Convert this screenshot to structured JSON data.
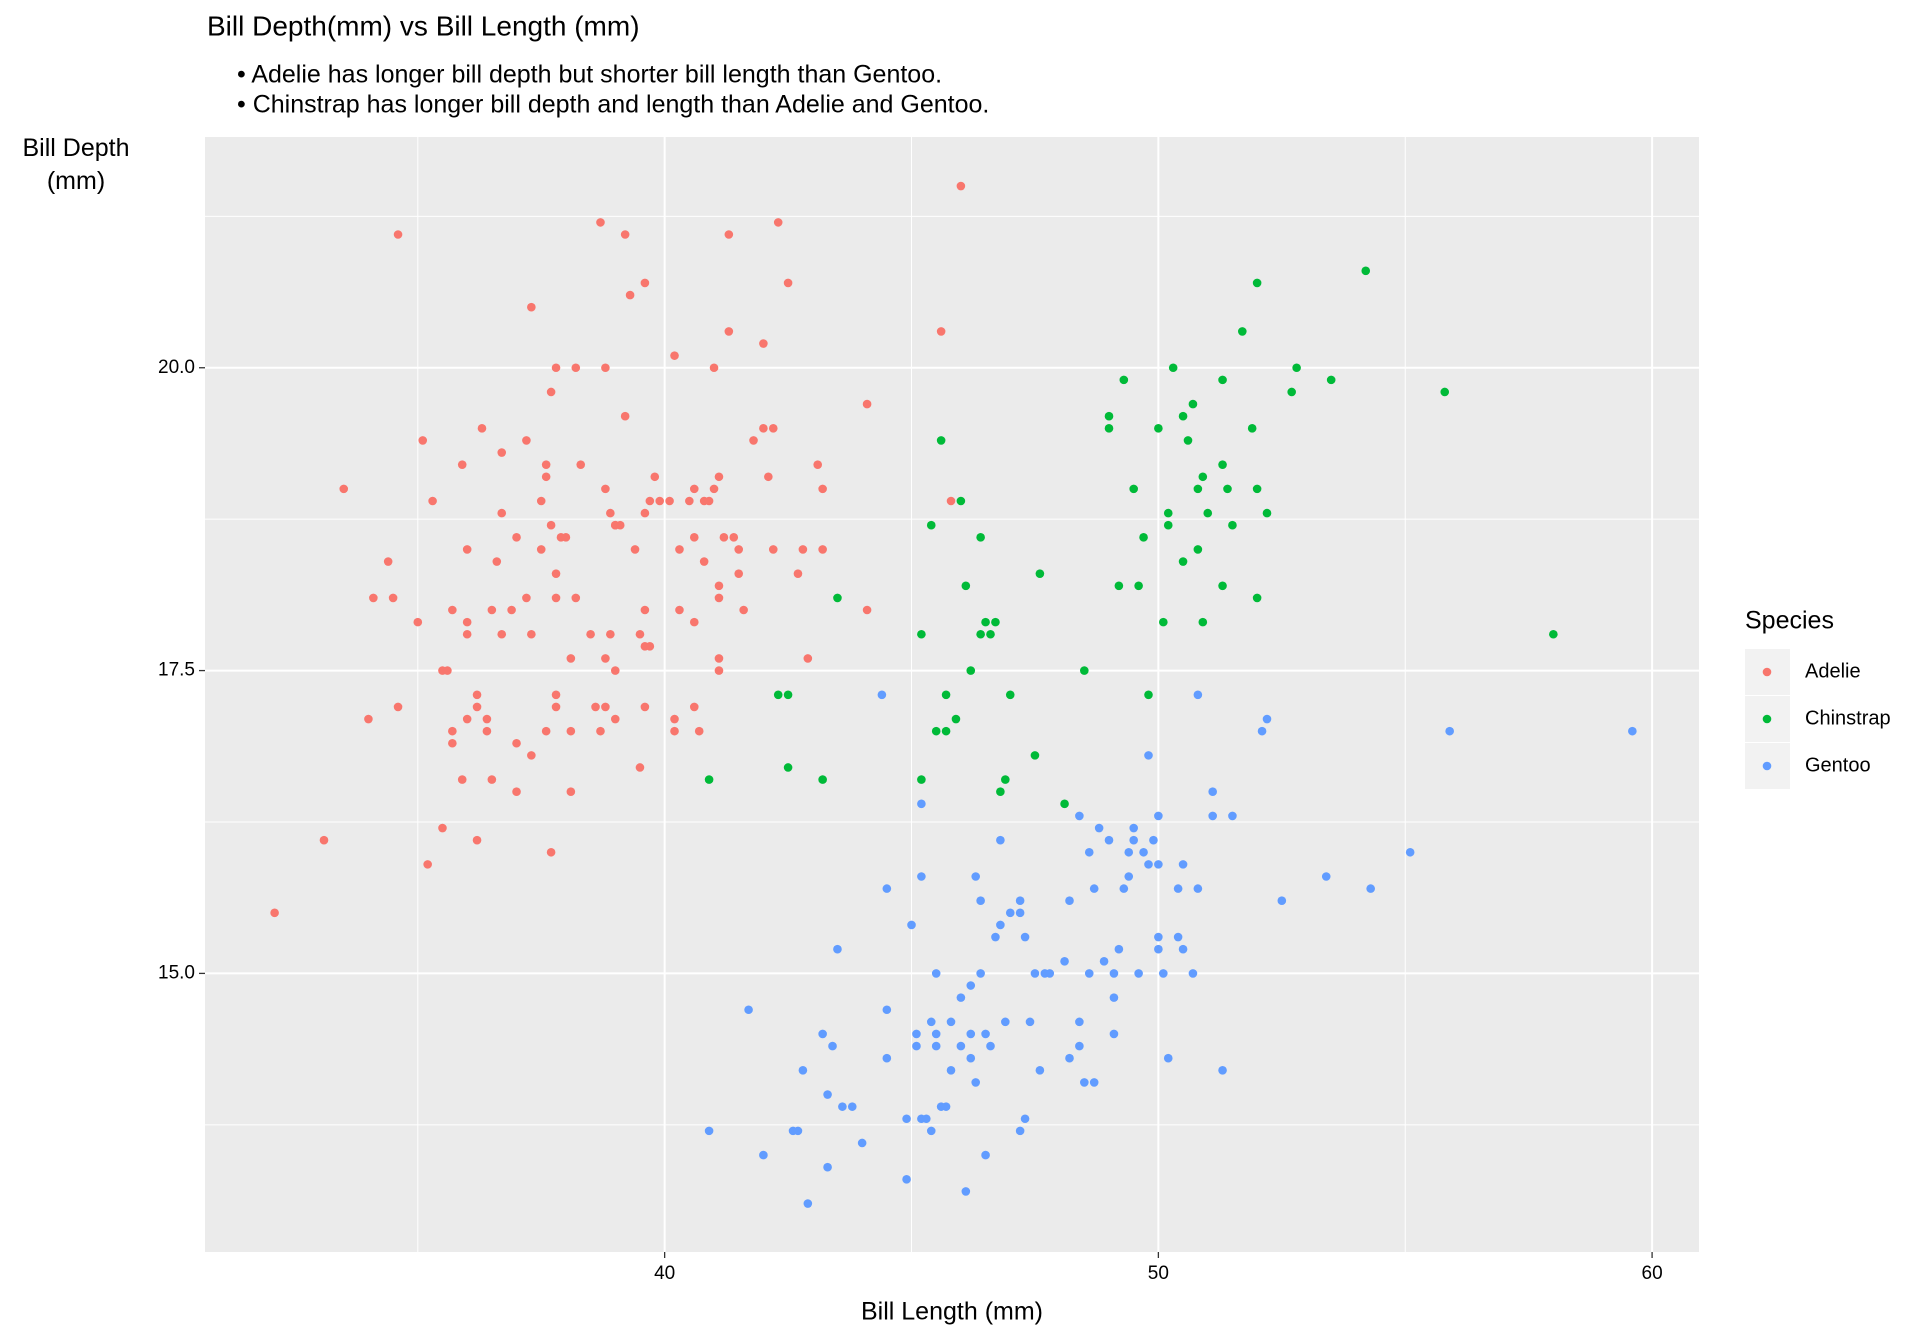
{
  "chart_data": {
    "type": "scatter",
    "title": "Bill Depth(mm) vs Bill Length (mm)",
    "subtitle": [
      "• Adelie has longer bill depth but shorter bill length than Gentoo.",
      "• Chinstrap has longer bill depth and length than Adelie and Gentoo."
    ],
    "xlabel": "Bill Length (mm)",
    "ylabel": "Bill Depth (mm)",
    "legend_title": "Species",
    "legend_position": "right",
    "grid": true,
    "xlim": [
      30.69,
      60.95
    ],
    "ylim": [
      12.7,
      21.905
    ],
    "xticks": [
      40,
      50,
      60
    ],
    "yticks": [
      {
        "value": 15,
        "label": "15.0"
      },
      17.5,
      {
        "value": 20,
        "label": "20.0"
      }
    ],
    "xminor": [
      35,
      45,
      55
    ],
    "yminor": [
      13.75,
      16.25,
      18.75,
      21.25
    ],
    "series": [
      {
        "name": "Adelie",
        "color": "#F8766D",
        "x": [
          32.1,
          33.1,
          33.5,
          34.0,
          34.1,
          34.4,
          34.5,
          34.6,
          34.6,
          35.0,
          35.1,
          35.2,
          35.3,
          35.5,
          35.5,
          35.6,
          35.7,
          35.7,
          35.7,
          35.9,
          35.9,
          36.0,
          36.0,
          36.0,
          36.0,
          36.2,
          36.2,
          36.2,
          36.3,
          36.4,
          36.4,
          36.5,
          36.5,
          36.6,
          36.7,
          36.7,
          36.7,
          36.9,
          37.0,
          37.0,
          37.0,
          37.2,
          37.2,
          37.3,
          37.3,
          37.3,
          37.5,
          37.5,
          37.6,
          37.6,
          37.6,
          37.7,
          37.7,
          37.7,
          37.8,
          37.8,
          37.8,
          37.8,
          37.8,
          37.9,
          38.0,
          38.1,
          38.1,
          38.1,
          38.2,
          38.2,
          38.3,
          38.5,
          38.6,
          38.7,
          38.7,
          38.8,
          38.8,
          38.8,
          38.8,
          38.9,
          38.9,
          39.0,
          39.0,
          39.0,
          39.1,
          39.0,
          39.2,
          39.2,
          39.3,
          39.4,
          39.5,
          39.5,
          39.6,
          39.6,
          39.6,
          39.6,
          39.6,
          39.7,
          39.7,
          39.8,
          39.9,
          40.1,
          40.2,
          40.2,
          40.2,
          40.3,
          40.3,
          40.5,
          40.6,
          40.6,
          40.6,
          40.6,
          40.7,
          40.8,
          40.8,
          40.9,
          41.0,
          41.0,
          41.1,
          41.1,
          41.1,
          41.1,
          41.1,
          41.2,
          41.3,
          41.3,
          41.4,
          41.5,
          41.5,
          41.6,
          41.8,
          42.0,
          42.0,
          42.1,
          42.2,
          42.2,
          42.3,
          42.5,
          42.7,
          42.8,
          42.9,
          43.1,
          43.2,
          43.2,
          44.1,
          44.1,
          45.6,
          45.8,
          46.0
        ],
        "values": [
          15.5,
          16.1,
          19.0,
          17.1,
          18.1,
          18.4,
          18.1,
          17.2,
          21.1,
          17.9,
          19.4,
          15.9,
          18.9,
          16.2,
          17.5,
          17.5,
          17.0,
          16.9,
          18.0,
          19.2,
          16.6,
          17.9,
          17.8,
          18.5,
          17.1,
          17.3,
          17.2,
          16.1,
          19.5,
          17.1,
          17.0,
          18.0,
          16.6,
          18.4,
          19.3,
          17.8,
          18.8,
          18.0,
          16.9,
          16.5,
          18.6,
          19.4,
          18.1,
          17.8,
          16.8,
          20.5,
          18.9,
          18.5,
          19.2,
          19.1,
          17.0,
          18.7,
          19.8,
          16.0,
          20.0,
          18.3,
          18.1,
          17.2,
          17.3,
          18.6,
          18.6,
          17.6,
          17.0,
          16.5,
          20.0,
          18.1,
          19.2,
          17.8,
          17.2,
          21.2,
          17.0,
          19.0,
          17.2,
          20.0,
          17.6,
          18.8,
          17.8,
          17.5,
          18.7,
          18.7,
          18.7,
          17.1,
          21.1,
          19.6,
          20.6,
          18.5,
          16.7,
          17.8,
          17.2,
          18.8,
          20.7,
          18.0,
          17.7,
          18.9,
          17.7,
          19.1,
          18.9,
          18.9,
          20.1,
          17.1,
          17.0,
          18.0,
          18.5,
          18.9,
          19.0,
          18.6,
          17.2,
          17.9,
          17.0,
          18.4,
          18.9,
          18.9,
          19.0,
          20.0,
          19.1,
          18.2,
          18.1,
          17.6,
          17.5,
          18.6,
          21.1,
          20.3,
          18.6,
          18.5,
          18.3,
          18.0,
          19.4,
          19.5,
          20.2,
          19.1,
          19.5,
          18.5,
          21.2,
          20.7,
          18.3,
          18.5,
          17.6,
          19.2,
          19.0,
          18.5,
          19.7,
          18.0,
          20.3,
          18.9,
          21.5
        ]
      },
      {
        "name": "Chinstrap",
        "color": "#00BA38",
        "x": [
          40.9,
          42.3,
          42.5,
          42.5,
          43.2,
          43.5,
          45.2,
          45.2,
          45.4,
          45.5,
          45.6,
          45.7,
          45.7,
          45.9,
          46.0,
          46.1,
          46.2,
          46.4,
          46.4,
          46.5,
          46.6,
          46.7,
          46.8,
          46.9,
          47.0,
          47.5,
          47.6,
          48.1,
          48.5,
          49.0,
          49.0,
          49.2,
          49.3,
          49.5,
          49.6,
          49.7,
          49.8,
          50.0,
          50.1,
          50.2,
          50.2,
          50.3,
          50.5,
          50.5,
          50.6,
          50.7,
          50.8,
          50.8,
          50.9,
          50.9,
          51.0,
          51.3,
          51.3,
          51.3,
          51.4,
          51.5,
          51.7,
          51.9,
          52.0,
          52.0,
          52.0,
          52.2,
          52.7,
          52.8,
          53.5,
          54.2,
          55.8,
          58.0
        ],
        "values": [
          16.6,
          17.3,
          17.3,
          16.7,
          16.6,
          18.1,
          17.8,
          16.6,
          18.7,
          17.0,
          19.4,
          17.3,
          17.0,
          17.1,
          18.9,
          18.2,
          17.5,
          17.8,
          18.6,
          17.9,
          17.8,
          17.9,
          16.5,
          16.6,
          17.3,
          16.8,
          18.3,
          16.4,
          17.5,
          19.6,
          19.5,
          18.2,
          19.9,
          19.0,
          18.2,
          18.6,
          17.3,
          19.5,
          17.9,
          18.8,
          18.7,
          20.0,
          18.4,
          19.6,
          19.4,
          19.7,
          18.5,
          19.0,
          19.1,
          17.9,
          18.8,
          19.2,
          18.2,
          19.9,
          19.0,
          18.7,
          20.3,
          19.5,
          19.0,
          18.1,
          20.7,
          18.8,
          19.8,
          20.0,
          19.9,
          20.8,
          19.8,
          17.8
        ]
      },
      {
        "name": "Gentoo",
        "color": "#619CFF",
        "x": [
          40.9,
          41.7,
          42.0,
          42.6,
          42.7,
          42.8,
          42.9,
          43.2,
          43.3,
          43.4,
          43.3,
          43.5,
          43.6,
          43.8,
          44.0,
          44.4,
          44.5,
          44.5,
          44.5,
          44.9,
          44.9,
          45.0,
          45.1,
          45.1,
          45.2,
          45.2,
          45.2,
          45.3,
          45.4,
          45.4,
          45.5,
          45.5,
          45.5,
          45.6,
          45.7,
          45.8,
          45.8,
          46.0,
          46.0,
          46.1,
          46.2,
          46.2,
          46.2,
          46.3,
          46.3,
          46.4,
          46.4,
          46.5,
          46.5,
          46.6,
          46.7,
          46.8,
          46.8,
          46.9,
          47.0,
          47.2,
          47.2,
          47.2,
          47.3,
          47.3,
          47.4,
          47.5,
          47.6,
          47.7,
          47.8,
          48.1,
          48.2,
          48.2,
          48.4,
          48.4,
          48.4,
          48.5,
          48.6,
          48.6,
          48.7,
          48.7,
          48.8,
          48.9,
          49.0,
          49.1,
          49.1,
          49.1,
          49.2,
          49.3,
          49.4,
          49.4,
          49.5,
          49.5,
          49.6,
          49.7,
          49.8,
          49.8,
          49.9,
          50.0,
          50.0,
          50.0,
          50.0,
          50.1,
          50.2,
          50.4,
          50.4,
          50.5,
          50.5,
          50.7,
          50.8,
          50.8,
          51.1,
          51.1,
          51.3,
          51.5,
          52.1,
          52.2,
          52.5,
          53.4,
          54.3,
          55.1,
          55.9,
          59.6
        ],
        "values": [
          13.7,
          14.7,
          13.5,
          13.7,
          13.7,
          14.2,
          13.1,
          14.5,
          13.4,
          14.4,
          14.0,
          15.2,
          13.9,
          13.9,
          13.6,
          17.3,
          14.7,
          14.3,
          15.7,
          13.8,
          13.3,
          15.4,
          14.4,
          14.5,
          15.8,
          13.8,
          16.4,
          13.8,
          13.7,
          14.6,
          14.5,
          15.0,
          14.4,
          13.9,
          13.9,
          14.2,
          14.6,
          14.8,
          14.4,
          13.2,
          14.5,
          14.3,
          14.9,
          15.8,
          14.1,
          15.6,
          15.0,
          14.5,
          13.5,
          14.4,
          15.3,
          16.1,
          15.4,
          14.6,
          15.5,
          15.5,
          13.7,
          15.6,
          15.3,
          13.8,
          14.6,
          15.0,
          14.2,
          15.0,
          15.0,
          15.1,
          14.3,
          15.6,
          14.4,
          14.6,
          16.3,
          14.1,
          15.0,
          16.0,
          14.1,
          15.7,
          16.2,
          15.1,
          16.1,
          14.8,
          14.5,
          15.0,
          15.2,
          15.7,
          15.8,
          16.0,
          16.1,
          16.2,
          15.0,
          16.0,
          16.8,
          15.9,
          16.1,
          15.9,
          16.3,
          15.3,
          15.2,
          15.0,
          14.3,
          15.3,
          15.7,
          15.9,
          15.2,
          15.0,
          15.7,
          17.3,
          16.5,
          16.3,
          14.2,
          16.3,
          17.0,
          17.1,
          15.6,
          15.8,
          15.7,
          16.0,
          17.0,
          17.0
        ]
      }
    ]
  }
}
